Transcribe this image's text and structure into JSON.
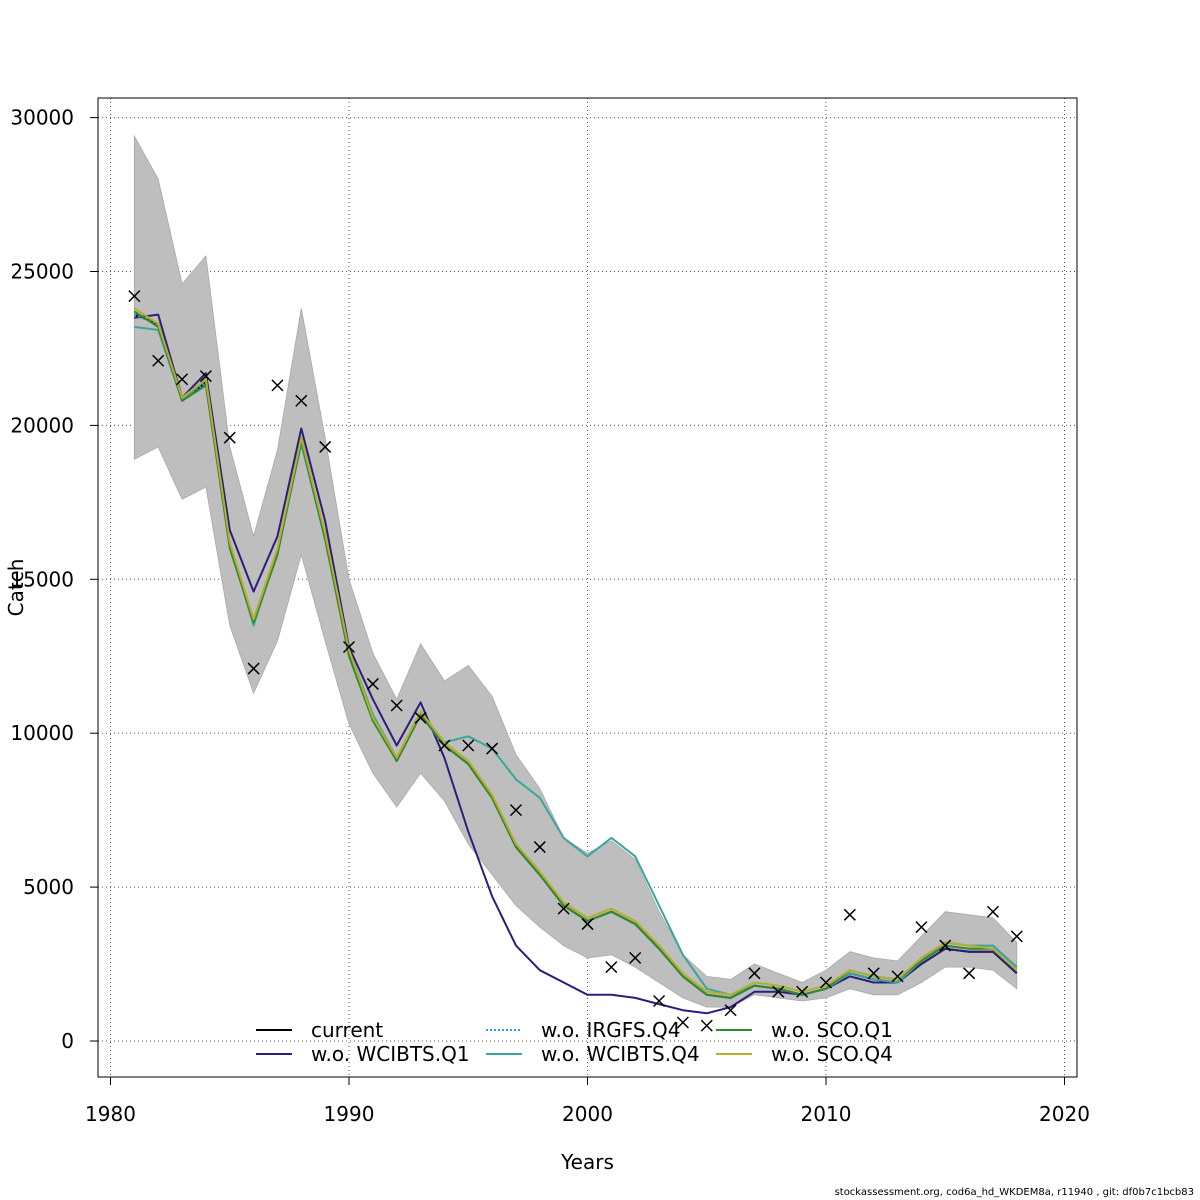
{
  "chart_data": {
    "type": "line",
    "title": "",
    "xlabel": "Years",
    "ylabel": "Catch",
    "xlim": [
      1980,
      2020
    ],
    "ylim": [
      0,
      30000
    ],
    "xticks": [
      1980,
      1990,
      2000,
      2010,
      2020
    ],
    "yticks": [
      0,
      5000,
      10000,
      15000,
      20000,
      25000,
      30000
    ],
    "grid": true,
    "legend_position": "bottom-center",
    "years": [
      1981,
      1982,
      1983,
      1984,
      1985,
      1986,
      1987,
      1988,
      1989,
      1990,
      1991,
      1992,
      1993,
      1994,
      1995,
      1996,
      1997,
      1998,
      1999,
      2000,
      2001,
      2002,
      2003,
      2004,
      2005,
      2006,
      2007,
      2008,
      2009,
      2010,
      2011,
      2012,
      2013,
      2014,
      2015,
      2016,
      2017,
      2018
    ],
    "band": {
      "color": "#bebebe",
      "upper": [
        29400,
        28000,
        24600,
        25500,
        19300,
        16400,
        19200,
        23800,
        19600,
        15000,
        12600,
        11100,
        12900,
        11700,
        12200,
        11200,
        9300,
        8200,
        6600,
        6100,
        6500,
        5900,
        4200,
        2800,
        2100,
        2000,
        2500,
        2200,
        1900,
        2300,
        2900,
        2700,
        2600,
        3400,
        4200,
        4100,
        4000,
        3200
      ],
      "lower": [
        18900,
        19300,
        17600,
        18000,
        13500,
        11300,
        13000,
        15800,
        13000,
        10300,
        8700,
        7600,
        8700,
        7800,
        6400,
        5400,
        4400,
        3700,
        3100,
        2700,
        2800,
        2400,
        1900,
        1400,
        1100,
        1100,
        1500,
        1400,
        1300,
        1400,
        1700,
        1500,
        1500,
        1900,
        2400,
        2400,
        2300,
        1700
      ]
    },
    "series": [
      {
        "name": "current",
        "color": "#000000",
        "style": "solid",
        "values": [
          23600,
          23300,
          20800,
          21400,
          16100,
          13600,
          15900,
          19600,
          16400,
          12600,
          10500,
          9100,
          10600,
          9600,
          9000,
          7900,
          6300,
          5400,
          4400,
          3900,
          4200,
          3800,
          3000,
          2100,
          1500,
          1400,
          1800,
          1700,
          1500,
          1700,
          2200,
          2000,
          1900,
          2500,
          3000,
          2900,
          2900,
          2200
        ]
      },
      {
        "name": "w.o. WCIBTS.Q1",
        "color": "#2d1e7c",
        "style": "solid",
        "values": [
          23500,
          23600,
          20900,
          21700,
          16600,
          14600,
          16400,
          19900,
          16900,
          12800,
          11100,
          9600,
          11000,
          9200,
          6800,
          4700,
          3100,
          2300,
          1900,
          1500,
          1500,
          1400,
          1200,
          1000,
          900,
          1100,
          1600,
          1600,
          1500,
          1700,
          2100,
          1900,
          1900,
          2500,
          3000,
          2900,
          2900,
          2200
        ]
      },
      {
        "name": "w.o. IRGFS.Q4",
        "color": "#2f9be6",
        "style": "dotted",
        "values": [
          23600,
          23300,
          20800,
          21400,
          16100,
          13600,
          15900,
          19600,
          16400,
          12600,
          10500,
          9100,
          10600,
          9600,
          9000,
          7900,
          6300,
          5400,
          4400,
          3900,
          4200,
          3800,
          3000,
          2100,
          1500,
          1400,
          1800,
          1700,
          1500,
          1700,
          2200,
          2000,
          1900,
          2600,
          3200,
          3100,
          3100,
          2400
        ]
      },
      {
        "name": "w.o. WCIBTS.Q4",
        "color": "#3ba59d",
        "style": "solid",
        "values": [
          23200,
          23100,
          20800,
          21500,
          16100,
          13500,
          15900,
          19400,
          16300,
          12700,
          10600,
          9200,
          10700,
          9700,
          9900,
          9500,
          8500,
          7900,
          6600,
          6000,
          6600,
          6000,
          4400,
          2800,
          1700,
          1500,
          1800,
          1700,
          1500,
          1700,
          2200,
          2000,
          1900,
          2600,
          3200,
          3100,
          3100,
          2400
        ]
      },
      {
        "name": "w.o. SCO.Q1",
        "color": "#2f8b2f",
        "style": "solid",
        "values": [
          23700,
          23200,
          20800,
          21300,
          16000,
          13600,
          15800,
          19500,
          16300,
          12500,
          10400,
          9100,
          10600,
          9600,
          9000,
          7900,
          6300,
          5400,
          4400,
          3900,
          4200,
          3800,
          3000,
          2100,
          1500,
          1400,
          1800,
          1700,
          1500,
          1700,
          2300,
          2100,
          2000,
          2600,
          3100,
          3000,
          3000,
          2300
        ]
      },
      {
        "name": "w.o. SCO.Q4",
        "color": "#b8ad2c",
        "style": "solid",
        "values": [
          23800,
          23300,
          20900,
          21500,
          16200,
          13700,
          16000,
          19600,
          16500,
          12700,
          10500,
          9200,
          10700,
          9700,
          9100,
          8000,
          6400,
          5500,
          4500,
          4000,
          4300,
          3900,
          3100,
          2200,
          1600,
          1500,
          1900,
          1800,
          1600,
          1800,
          2300,
          2100,
          2000,
          2700,
          3200,
          3100,
          3000,
          2300
        ]
      }
    ],
    "observed": {
      "marker": "x",
      "values": [
        24200,
        22100,
        21500,
        21600,
        19600,
        12100,
        21300,
        20800,
        19300,
        12800,
        11600,
        10900,
        10500,
        9600,
        9600,
        9500,
        7500,
        6300,
        4300,
        3800,
        2400,
        2700,
        1300,
        600,
        500,
        1000,
        2200,
        1600,
        1600,
        1900,
        4100,
        2200,
        2100,
        3700,
        3100,
        2200,
        4200,
        3400
      ]
    }
  },
  "footer_text": "stockassessment.org, cod6a_hd_WKDEM8a, r11940 , git: df0b7c1bcb83"
}
